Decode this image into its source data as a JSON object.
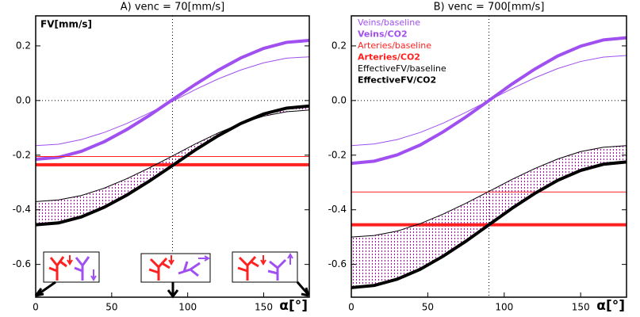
{
  "chart_data": [
    {
      "type": "line",
      "title": "A) venc = 70[mm/s]",
      "y_label": "FV[mm/s]",
      "x_label": "α[°]",
      "x": [
        0,
        15,
        30,
        45,
        60,
        75,
        90,
        105,
        120,
        135,
        150,
        165,
        180
      ],
      "xlim": [
        0,
        180
      ],
      "xticks": [
        0,
        50,
        100,
        150
      ],
      "ylim": [
        -0.72,
        0.31
      ],
      "yticks": [
        0.2,
        {
          "value": 0,
          "label": "0.0"
        },
        -0.2,
        -0.4,
        -0.6
      ],
      "vline": 90,
      "hline": 0,
      "hatch_color": "#c000c0",
      "series": [
        {
          "color": "#a050f0",
          "thick": false,
          "values": [
            -0.165,
            -0.16,
            -0.143,
            -0.117,
            -0.084,
            -0.045,
            -0.003,
            0.04,
            0.079,
            0.112,
            0.138,
            0.155,
            0.16
          ]
        },
        {
          "color": "#a050f0",
          "thick": true,
          "values": [
            -0.215,
            -0.208,
            -0.186,
            -0.151,
            -0.106,
            -0.054,
            0.003,
            0.059,
            0.111,
            0.156,
            0.191,
            0.213,
            0.22
          ]
        },
        {
          "color": "#ff2020",
          "thick": false,
          "values": [
            -0.205,
            -0.205,
            -0.205,
            -0.205,
            -0.205,
            -0.205,
            -0.205,
            -0.205,
            -0.205,
            -0.205,
            -0.205,
            -0.205,
            -0.205
          ]
        },
        {
          "color": "#ff2020",
          "thick": true,
          "values": [
            -0.235,
            -0.235,
            -0.235,
            -0.235,
            -0.235,
            -0.235,
            -0.235,
            -0.235,
            -0.235,
            -0.235,
            -0.235,
            -0.235,
            -0.235
          ]
        },
        {
          "color": "#000000",
          "thick": false,
          "values": [
            -0.37,
            -0.364,
            -0.348,
            -0.321,
            -0.286,
            -0.246,
            -0.203,
            -0.159,
            -0.119,
            -0.084,
            -0.057,
            -0.041,
            -0.035
          ]
        },
        {
          "color": "#000000",
          "thick": true,
          "values": [
            -0.455,
            -0.448,
            -0.426,
            -0.391,
            -0.346,
            -0.294,
            -0.238,
            -0.181,
            -0.129,
            -0.084,
            -0.049,
            -0.028,
            -0.02
          ]
        }
      ]
    },
    {
      "type": "line",
      "title": "B) venc = 700[mm/s]",
      "x_label": "α[°]",
      "legend": "top-left",
      "x": [
        0,
        15,
        30,
        45,
        60,
        75,
        90,
        105,
        120,
        135,
        150,
        165,
        180
      ],
      "xlim": [
        0,
        180
      ],
      "xticks": [
        0,
        50,
        100,
        150
      ],
      "ylim": [
        -0.72,
        0.31
      ],
      "yticks": [
        0.2,
        {
          "value": 0,
          "label": "0.0"
        },
        -0.2,
        -0.4,
        -0.6
      ],
      "vline": 90,
      "hline": 0,
      "hatch_color": "#c000c0",
      "series": [
        {
          "name": "Veins/baseline",
          "color": "#a050f0",
          "thick": false,
          "values": [
            -0.165,
            -0.159,
            -0.143,
            -0.117,
            -0.083,
            -0.043,
            0,
            0.043,
            0.083,
            0.117,
            0.143,
            0.159,
            0.165
          ]
        },
        {
          "name": "Veins/CO2",
          "color": "#a050f0",
          "thick": true,
          "values": [
            -0.23,
            -0.222,
            -0.199,
            -0.163,
            -0.115,
            -0.06,
            0,
            0.06,
            0.115,
            0.163,
            0.199,
            0.222,
            0.23
          ]
        },
        {
          "name": "Arteries/baseline",
          "color": "#ff2020",
          "thick": false,
          "values": [
            -0.335,
            -0.335,
            -0.335,
            -0.335,
            -0.335,
            -0.335,
            -0.335,
            -0.335,
            -0.335,
            -0.335,
            -0.335,
            -0.335,
            -0.335
          ]
        },
        {
          "name": "Arteries/CO2",
          "color": "#ff2020",
          "thick": true,
          "values": [
            -0.455,
            -0.455,
            -0.455,
            -0.455,
            -0.455,
            -0.455,
            -0.455,
            -0.455,
            -0.455,
            -0.455,
            -0.455,
            -0.455,
            -0.455
          ]
        },
        {
          "name": "EffectiveFV/baseline",
          "color": "#000000",
          "thick": false,
          "values": [
            -0.5,
            -0.494,
            -0.478,
            -0.451,
            -0.416,
            -0.376,
            -0.333,
            -0.289,
            -0.249,
            -0.214,
            -0.187,
            -0.171,
            -0.165
          ]
        },
        {
          "name": "EffectiveFV/CO2",
          "color": "#000000",
          "thick": true,
          "values": [
            -0.685,
            -0.677,
            -0.654,
            -0.618,
            -0.57,
            -0.515,
            -0.455,
            -0.395,
            -0.34,
            -0.292,
            -0.256,
            -0.233,
            -0.225
          ]
        }
      ]
    }
  ]
}
